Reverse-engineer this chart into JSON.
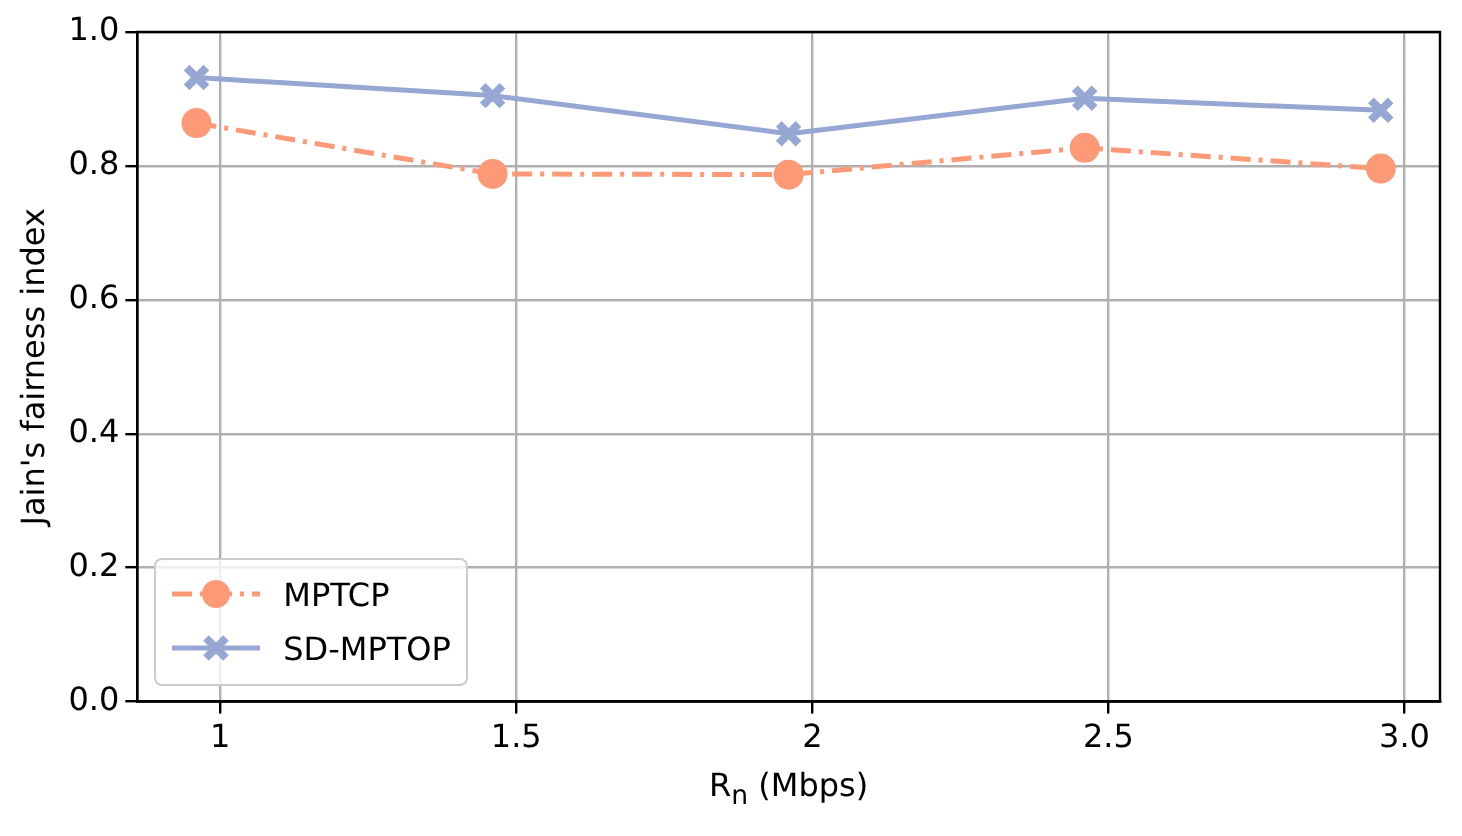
{
  "chart_data": {
    "type": "line",
    "xlabel": "R$_{n}$ (Mbps)",
    "ylabel": "Jain's fairness index",
    "series": [
      {
        "name": "MPTCP",
        "color": "#fc9a77",
        "x": [
          0.96,
          1.46,
          1.96,
          2.46,
          2.96
        ],
        "values": [
          0.864,
          0.788,
          0.787,
          0.827,
          0.796
        ],
        "marker": "circle",
        "line_style": "dashed"
      },
      {
        "name": "SD-MPTOP",
        "color": "#97a7d3",
        "x": [
          0.96,
          1.46,
          1.96,
          2.46,
          2.96
        ],
        "values": [
          0.932,
          0.905,
          0.848,
          0.901,
          0.883
        ],
        "marker": "cross",
        "line_style": "solid"
      }
    ],
    "xlim": [
      0.86,
      3.06
    ],
    "xticks": [
      1,
      1.5,
      2,
      2.5,
      {
        "value": 3,
        "label": "3.0"
      }
    ],
    "ylim": [
      0,
      1
    ],
    "yticks": [
      {
        "value": 0,
        "label": "0.0"
      },
      0.2,
      0.4,
      0.6,
      0.8,
      {
        "value": 1,
        "label": "1.0"
      }
    ],
    "grid": true,
    "legend": "bottom left"
  }
}
